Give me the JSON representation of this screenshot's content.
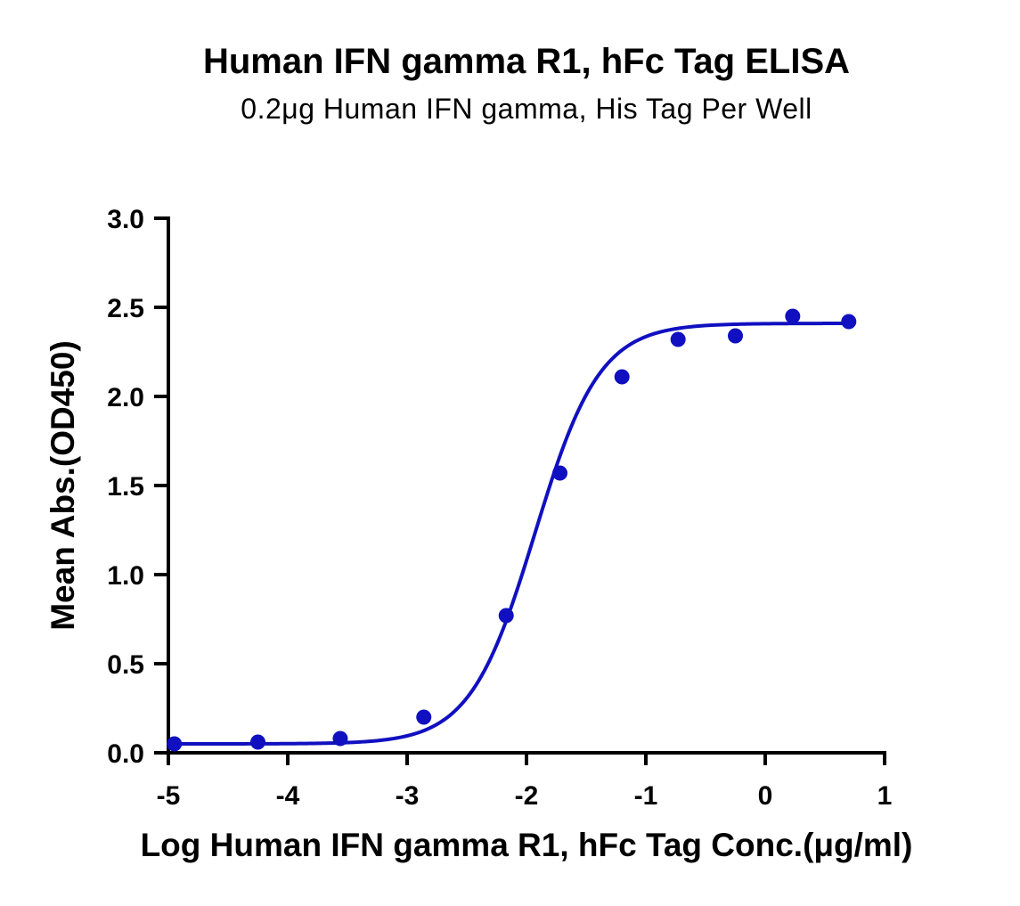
{
  "chart_data": {
    "type": "scatter",
    "title": "Human IFN gamma R1, hFc Tag ELISA",
    "subtitle": "0.2μg Human IFN gamma, His Tag Per Well",
    "xlabel": "Log Human IFN gamma R1, hFc Tag Conc.(μg/ml)",
    "ylabel": "Mean Abs.(OD450)",
    "xlim": [
      -5,
      1
    ],
    "ylim": [
      0,
      3.0
    ],
    "x_ticks": [
      "-5",
      "-4",
      "-3",
      "-2",
      "-1",
      "0",
      "1"
    ],
    "y_ticks": [
      "0.0",
      "0.5",
      "1.0",
      "1.5",
      "2.0",
      "2.5",
      "3.0"
    ],
    "grid": false,
    "color": "#1010c0",
    "series": [
      {
        "x": [
          -4.95,
          -4.25,
          -3.56,
          -2.86,
          -2.17,
          -1.72,
          -1.2,
          -0.73,
          -0.25,
          0.23,
          0.7
        ],
        "y": [
          0.05,
          0.06,
          0.08,
          0.2,
          0.77,
          1.57,
          2.11,
          2.32,
          2.34,
          2.45,
          2.42
        ]
      }
    ],
    "fit_curve": {
      "model": "4PL",
      "bottom": 0.05,
      "top": 2.41,
      "log_ec50": -1.93,
      "hill_slope": 1.6
    }
  }
}
